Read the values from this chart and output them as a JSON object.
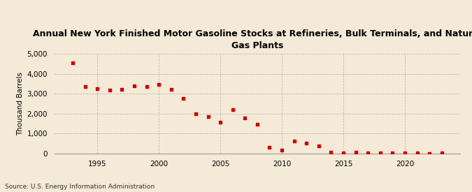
{
  "title": "Annual New York Finished Motor Gasoline Stocks at Refineries, Bulk Terminals, and Natural\nGas Plants",
  "ylabel": "Thousand Barrels",
  "source": "Source: U.S. Energy Information Administration",
  "background_color": "#f5ead8",
  "plot_background_color": "#f5ead8",
  "marker_color": "#cc0000",
  "marker": "s",
  "marker_size": 3.5,
  "ylim": [
    0,
    5000
  ],
  "yticks": [
    0,
    1000,
    2000,
    3000,
    4000,
    5000
  ],
  "xlim": [
    1991.5,
    2024.5
  ],
  "xticks": [
    1995,
    2000,
    2005,
    2010,
    2015,
    2020
  ],
  "years": [
    1993,
    1994,
    1995,
    1996,
    1997,
    1998,
    1999,
    2000,
    2001,
    2002,
    2003,
    2004,
    2005,
    2006,
    2007,
    2008,
    2009,
    2010,
    2011,
    2012,
    2013,
    2014,
    2015,
    2016,
    2017,
    2018,
    2019,
    2020,
    2021,
    2022,
    2023
  ],
  "values": [
    4530,
    3340,
    3240,
    3180,
    3220,
    3380,
    3360,
    3450,
    3220,
    2760,
    1990,
    1840,
    1580,
    2200,
    1800,
    1480,
    310,
    160,
    640,
    510,
    390,
    80,
    40,
    60,
    50,
    50,
    40,
    30,
    20,
    10,
    20
  ],
  "title_fontsize": 9,
  "label_fontsize": 7.5,
  "source_fontsize": 6.5,
  "grid_color": "#bbbbaa",
  "grid_linestyle": "--",
  "grid_linewidth": 0.6
}
